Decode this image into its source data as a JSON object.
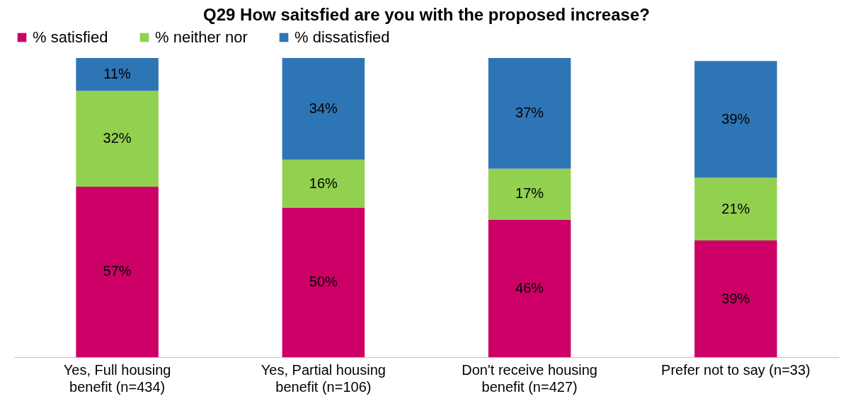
{
  "chart_data": {
    "type": "bar",
    "stacked": true,
    "title": "Q29 How saitsfied are you with the proposed increase?",
    "categories": [
      "Yes, Full housing benefit (n=434)",
      "Yes, Partial housing benefit (n=106)",
      "Don't receive housing benefit (n=427)",
      "Prefer not to say (n=33)"
    ],
    "series": [
      {
        "name": "% satisfied",
        "color": "#cc0066",
        "values": [
          57,
          50,
          46,
          39
        ],
        "value_labels": [
          "57%",
          "50%",
          "46%",
          "39%"
        ]
      },
      {
        "name": "% neither nor",
        "color": "#92d050",
        "values": [
          32,
          16,
          17,
          21
        ],
        "value_labels": [
          "32%",
          "16%",
          "17%",
          "21%"
        ]
      },
      {
        "name": "% dissatisfied",
        "color": "#2e75b6",
        "values": [
          11,
          34,
          37,
          39
        ],
        "value_labels": [
          "11%",
          "34%",
          "37%",
          "39%"
        ]
      }
    ],
    "legend": "top"
  }
}
